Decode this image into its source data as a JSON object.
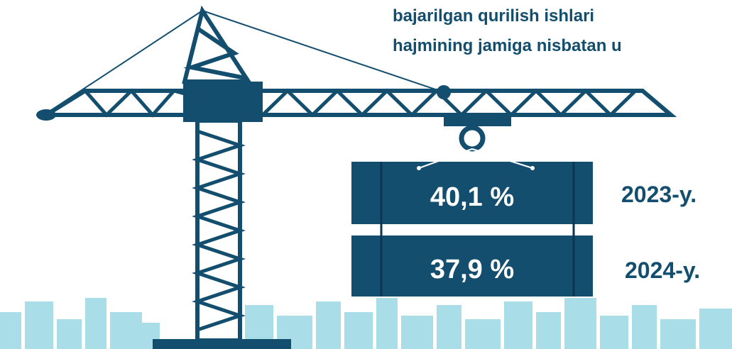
{
  "title_lines": [
    "bajarilgan qurilish ishlari",
    "hajmining jamiga nisbatan u"
  ],
  "items": [
    {
      "value": "40,1 %",
      "year": "2023-y."
    },
    {
      "value": "37,9 %",
      "year": "2024-y."
    }
  ]
}
